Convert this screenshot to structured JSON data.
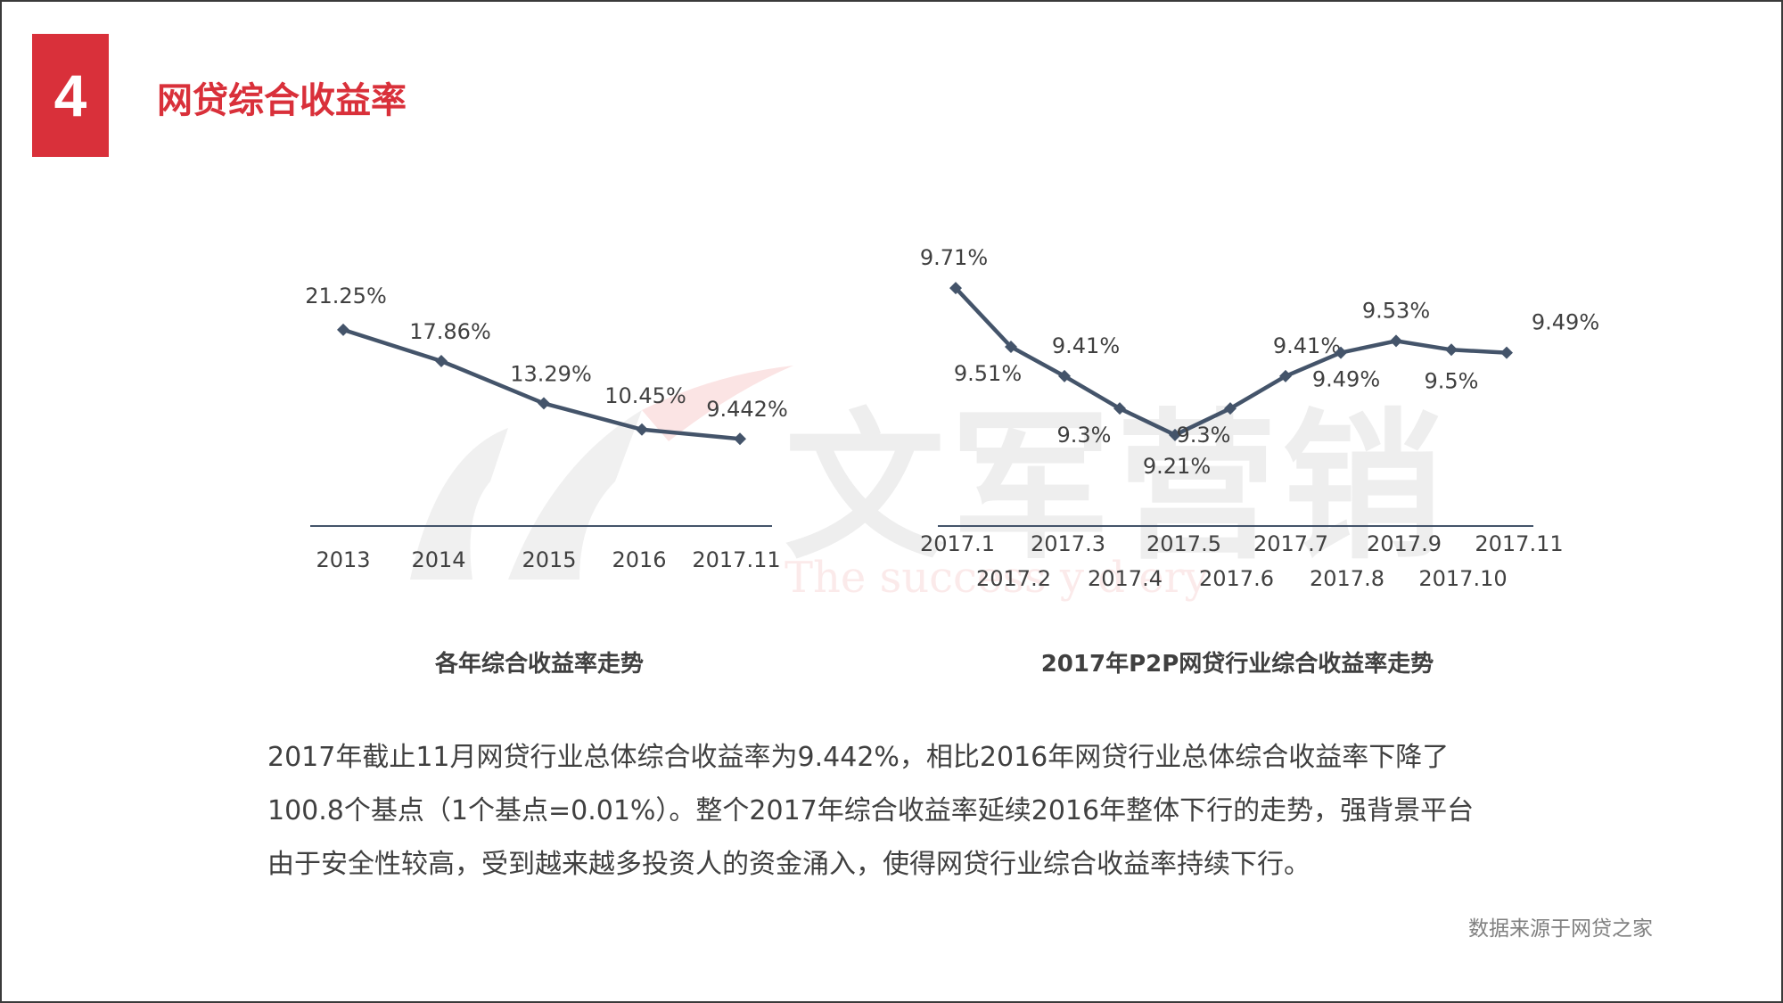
{
  "header": {
    "number": "4",
    "title": "网贷综合收益率"
  },
  "watermark": {
    "brand": "文军营销",
    "slogan": "The success y  d  ery"
  },
  "colors": {
    "accent": "#d9303a",
    "line": "#44546a",
    "text": "#404040"
  },
  "chart_data": [
    {
      "type": "line",
      "title": "各年综合收益率走势",
      "categories": [
        "2013",
        "2014",
        "2015",
        "2016",
        "2017.11"
      ],
      "series": [
        {
          "values": [
            21.25,
            17.86,
            13.29,
            10.45,
            9.442
          ]
        }
      ],
      "data_labels": [
        "21.25%",
        "17.86%",
        "13.29%",
        "10.45%",
        "9.442%"
      ],
      "ylim": [
        0,
        28
      ],
      "grid": false
    },
    {
      "type": "line",
      "title": "2017年P2P网贷行业综合收益率走势",
      "categories": [
        "2017.1",
        "2017.2",
        "2017.3",
        "2017.4",
        "2017.5",
        "2017.6",
        "2017.7",
        "2017.8",
        "2017.9",
        "2017.10",
        "2017.11"
      ],
      "series": [
        {
          "values": [
            9.71,
            9.51,
            9.41,
            9.3,
            9.21,
            9.3,
            9.41,
            9.49,
            9.53,
            9.5,
            9.49
          ]
        }
      ],
      "data_labels": [
        "9.71%",
        "9.51%",
        "9.41%",
        "9.3%",
        "9.21%",
        "9.3%",
        "9.41%",
        "9.49%",
        "9.53%",
        "9.5%",
        "9.49%"
      ],
      "ylim": [
        8.9,
        9.78
      ],
      "grid": false
    }
  ],
  "body": {
    "lines": [
      "2017年截止11月网贷行业总体综合收益率为9.442%，相比2016年网贷行业总体综合收益率下降了",
      "100.8个基点（1个基点=0.01%）。整个2017年综合收益率延续2016年整体下行的走势，强背景平台",
      "由于安全性较高，受到越来越多投资人的资金涌入，使得网贷行业综合收益率持续下行。"
    ]
  },
  "source": "数据来源于网贷之家"
}
